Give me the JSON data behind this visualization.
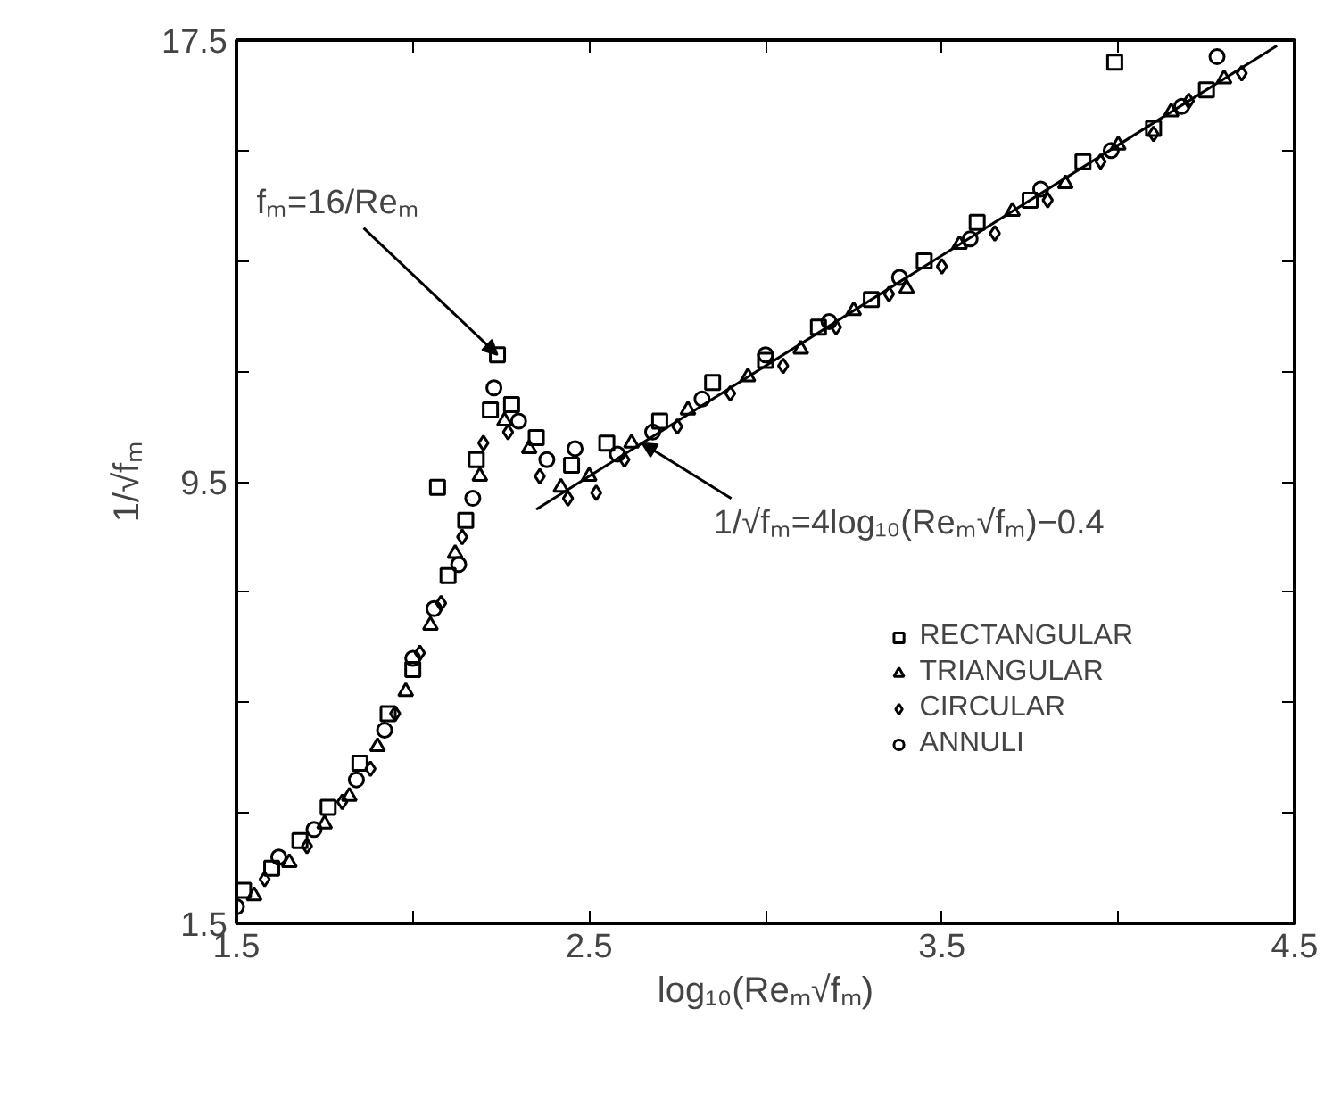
{
  "chart_data": {
    "type": "scatter",
    "xlabel": "log₁₀(Reₘ√fₘ)",
    "ylabel": "1/√fₘ",
    "xlim": [
      1.5,
      4.5
    ],
    "ylim": [
      1.5,
      17.5
    ],
    "xticks": [
      1.5,
      {
        "value": 2,
        "label": null
      },
      2.5,
      {
        "value": 3,
        "label": null
      },
      3.5,
      {
        "value": 4,
        "label": null
      },
      4.5
    ],
    "yticks": [
      1.5,
      {
        "value": 3.5,
        "label": null
      },
      {
        "value": 5.5,
        "label": null
      },
      {
        "value": 7.5,
        "label": null
      },
      9.5,
      {
        "value": 11.5,
        "label": null
      },
      {
        "value": 13.5,
        "label": null
      },
      {
        "value": 15.5,
        "label": null
      },
      17.5
    ],
    "grid": false,
    "legend": "bottom right",
    "annotations": [
      {
        "text": "fₘ=16/Reₘ",
        "x": 2.24,
        "y": 11.8
      },
      {
        "text": "1/√fₘ=4log₁₀(Reₘ√fₘ)−0.4",
        "x": 2.65,
        "y": 10.2
      }
    ],
    "series": [
      {
        "name": "RECTANGULAR",
        "color": "#000000",
        "marker": "square",
        "x": [
          1.52,
          1.6,
          1.68,
          1.76,
          1.85,
          1.93,
          2.0,
          2.07,
          2.1,
          2.15,
          2.18,
          2.22,
          2.24,
          2.28,
          2.35,
          2.45,
          2.55,
          2.7,
          2.85,
          3.0,
          3.15,
          3.3,
          3.45,
          3.6,
          3.75,
          3.9,
          3.99,
          4.1,
          4.25
        ],
        "values": [
          2.1,
          2.5,
          3.0,
          3.6,
          4.4,
          5.3,
          6.1,
          9.4,
          7.8,
          8.8,
          9.9,
          10.8,
          11.8,
          10.9,
          10.3,
          9.8,
          10.2,
          10.6,
          11.3,
          11.7,
          12.3,
          12.8,
          13.5,
          14.2,
          14.6,
          15.3,
          17.1,
          15.9,
          16.6
        ]
      },
      {
        "name": "TRIANGULAR",
        "color": "#000000",
        "marker": "triangle",
        "x": [
          1.55,
          1.65,
          1.75,
          1.82,
          1.9,
          1.98,
          2.05,
          2.12,
          2.19,
          2.26,
          2.33,
          2.42,
          2.5,
          2.62,
          2.78,
          2.95,
          3.1,
          3.25,
          3.4,
          3.55,
          3.7,
          3.85,
          4.0,
          4.15,
          4.3
        ],
        "values": [
          2.0,
          2.6,
          3.3,
          3.8,
          4.7,
          5.7,
          6.9,
          8.2,
          9.6,
          10.6,
          10.1,
          9.4,
          9.6,
          10.2,
          10.8,
          11.4,
          11.9,
          12.6,
          13.0,
          13.8,
          14.4,
          14.9,
          15.6,
          16.2,
          16.8
        ]
      },
      {
        "name": "CIRCULAR",
        "color": "#000000",
        "marker": "diamond",
        "x": [
          1.58,
          1.7,
          1.8,
          1.88,
          1.95,
          2.02,
          2.08,
          2.14,
          2.2,
          2.27,
          2.36,
          2.44,
          2.52,
          2.6,
          2.75,
          2.9,
          3.05,
          3.2,
          3.35,
          3.5,
          3.65,
          3.8,
          3.95,
          4.1,
          4.2,
          4.35
        ],
        "values": [
          2.3,
          2.9,
          3.7,
          4.3,
          5.3,
          6.4,
          7.3,
          8.5,
          10.2,
          10.4,
          9.6,
          9.2,
          9.3,
          9.9,
          10.5,
          11.1,
          11.6,
          12.3,
          12.9,
          13.4,
          14.0,
          14.6,
          15.3,
          15.8,
          16.4,
          16.9
        ]
      },
      {
        "name": "ANNULI",
        "color": "#000000",
        "marker": "circle",
        "x": [
          1.5,
          1.62,
          1.72,
          1.84,
          1.92,
          2.0,
          2.06,
          2.13,
          2.17,
          2.23,
          2.3,
          2.38,
          2.46,
          2.58,
          2.68,
          2.82,
          3.0,
          3.18,
          3.38,
          3.58,
          3.78,
          3.98,
          4.18,
          4.28
        ],
        "values": [
          1.8,
          2.7,
          3.2,
          4.1,
          5.0,
          6.3,
          7.2,
          8.0,
          9.2,
          11.2,
          10.6,
          9.9,
          10.1,
          10.0,
          10.4,
          11.0,
          11.8,
          12.4,
          13.2,
          13.9,
          14.8,
          15.5,
          16.3,
          17.2
        ]
      },
      {
        "type": "line",
        "color": "#000000",
        "line_style": "solid",
        "x": [
          2.35,
          4.45
        ],
        "values": [
          9.0,
          17.4
        ]
      }
    ]
  }
}
